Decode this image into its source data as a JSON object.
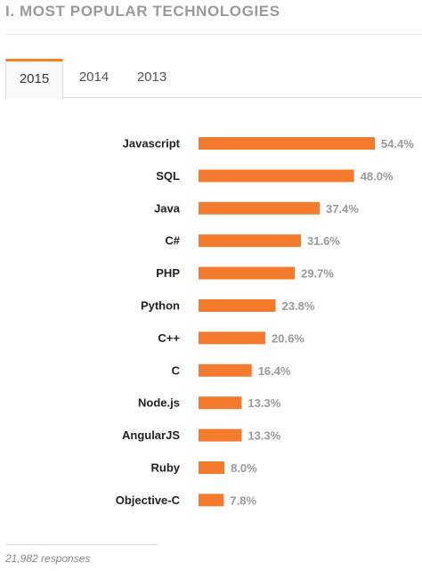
{
  "title": "I. MOST POPULAR TECHNOLOGIES",
  "tabs": [
    {
      "label": "2015",
      "active": true
    },
    {
      "label": "2014",
      "active": false
    },
    {
      "label": "2013",
      "active": false
    }
  ],
  "colors": {
    "bar": "#f47a2d",
    "accent": "#f48024"
  },
  "chart_data": {
    "type": "bar",
    "orientation": "horizontal",
    "categories": [
      "Javascript",
      "SQL",
      "Java",
      "C#",
      "PHP",
      "Python",
      "C++",
      "C",
      "Node.js",
      "AngularJS",
      "Ruby",
      "Objective-C"
    ],
    "values": [
      54.4,
      48.0,
      37.4,
      31.6,
      29.7,
      23.8,
      20.6,
      16.4,
      13.3,
      13.3,
      8.0,
      7.8
    ],
    "value_labels": [
      "54.4%",
      "48.0%",
      "37.4%",
      "31.6%",
      "29.7%",
      "23.8%",
      "20.6%",
      "16.4%",
      "13.3%",
      "13.3%",
      "8.0%",
      "7.8%"
    ],
    "unit": "%",
    "xlim": [
      0,
      100
    ],
    "grid": false,
    "legend": "none"
  },
  "footer": {
    "responses": "21,982 responses"
  }
}
